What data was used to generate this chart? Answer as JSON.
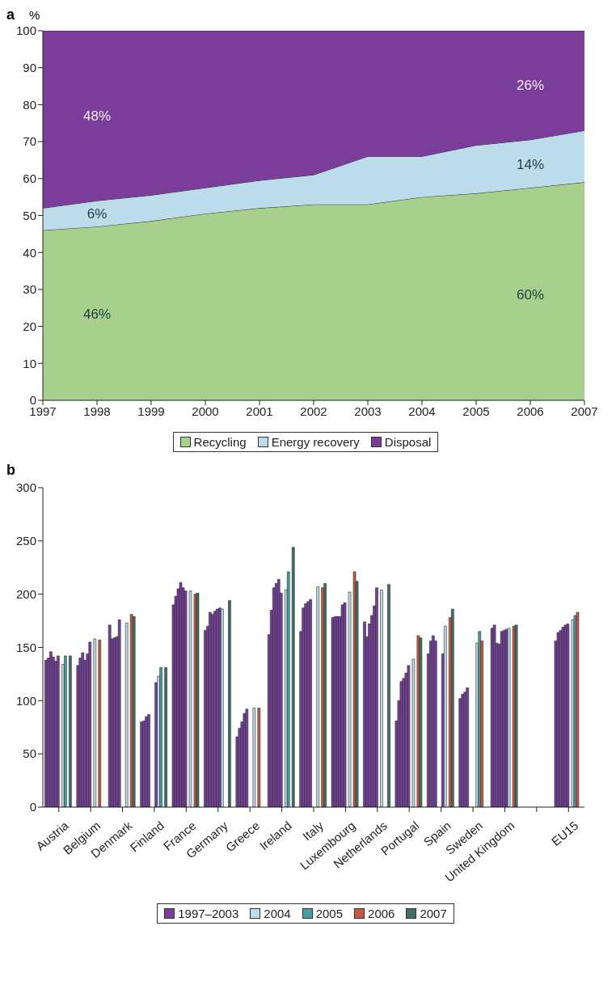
{
  "chart_data": [
    {
      "type": "area",
      "title": "a",
      "ylabel": "%",
      "stacked": true,
      "x": [
        1997,
        1998,
        1999,
        2000,
        2001,
        2002,
        2003,
        2004,
        2005,
        2006,
        2007
      ],
      "series": [
        {
          "name": "Recycling",
          "color": "#a8d08d",
          "values": [
            46,
            47,
            48.5,
            50.5,
            52,
            53,
            53,
            55,
            56,
            57.5,
            59
          ]
        },
        {
          "name": "Energy recovery",
          "color": "#bcdcec",
          "values": [
            6,
            7,
            7,
            7,
            7.5,
            8,
            13,
            11,
            13,
            13,
            14
          ]
        },
        {
          "name": "Disposal",
          "color": "#7a3d99",
          "values": [
            48,
            46,
            44.5,
            42.5,
            40.5,
            39,
            34,
            34,
            31,
            29.5,
            27
          ]
        }
      ],
      "xlim": [
        1997,
        2007
      ],
      "xticks": [
        1997,
        1998,
        1999,
        2000,
        2001,
        2002,
        2003,
        2004,
        2005,
        2006,
        2007
      ],
      "ylim": [
        0,
        100
      ],
      "yticks": [
        0,
        10,
        20,
        30,
        40,
        50,
        60,
        70,
        80,
        90,
        100
      ],
      "annotations": [
        "48%",
        "6%",
        "46%",
        "26%",
        "14%",
        "60%"
      ],
      "legend": "bottom"
    },
    {
      "type": "bar",
      "title": "b",
      "categories": [
        "Austria",
        "Belgium",
        "Denmark",
        "Finland",
        "France",
        "Germany",
        "Greece",
        "Ireland",
        "Italy",
        "Luxembourg",
        "Netherlands",
        "Portugal",
        "Spain",
        "Sweden",
        "United Kingdom",
        null,
        "EU15"
      ],
      "series": [
        {
          "name": "1997–2003",
          "color": "#74409a",
          "values": [
            138,
            133,
            171,
            80,
            190,
            166,
            66,
            162,
            165,
            178,
            174,
            81,
            144,
            102,
            168,
            null,
            156
          ]
        },
        {
          "color": "#74409a",
          "values": [
            140,
            140,
            158,
            81,
            198,
            170,
            74,
            185,
            187,
            179,
            160,
            100,
            156,
            106,
            171,
            null,
            164
          ]
        },
        {
          "color": "#74409a",
          "values": [
            146,
            145,
            159,
            85,
            205,
            183,
            80,
            206,
            191,
            179,
            172,
            118,
            161,
            108,
            154,
            null,
            166
          ]
        },
        {
          "color": "#74409a",
          "values": [
            141,
            138,
            160,
            87,
            211,
            181,
            88,
            210,
            193,
            179,
            180,
            121,
            156,
            112,
            153,
            null,
            169
          ]
        },
        {
          "color": "#74409a",
          "values": [
            137,
            144,
            176,
            null,
            206,
            184,
            92,
            214,
            195,
            190,
            189,
            126,
            null,
            null,
            165,
            null,
            171
          ]
        },
        {
          "color": "#74409a",
          "values": [
            142,
            155,
            null,
            null,
            203,
            186,
            null,
            201,
            null,
            192,
            206,
            133,
            null,
            null,
            166,
            null,
            172
          ]
        },
        {
          "color": "#74409a",
          "values": [
            null,
            null,
            null,
            117,
            null,
            187,
            null,
            null,
            null,
            null,
            null,
            null,
            144,
            null,
            167,
            null,
            null
          ]
        },
        {
          "name": "2004",
          "color": "#bcdcec",
          "values": [
            134,
            158,
            173,
            123,
            203,
            186,
            93,
            204,
            207,
            202,
            204,
            139,
            170,
            154,
            168,
            null,
            176
          ]
        },
        {
          "name": "2005",
          "color": "#4f9c9c",
          "values": [
            142,
            null,
            null,
            131,
            null,
            null,
            null,
            221,
            null,
            null,
            null,
            null,
            null,
            165,
            null,
            null,
            180
          ]
        },
        {
          "name": "2006",
          "color": "#c65a42",
          "values": [
            null,
            157,
            181,
            null,
            200,
            null,
            93,
            null,
            206,
            221,
            null,
            161,
            178,
            156,
            170,
            null,
            183
          ]
        },
        {
          "name": "2007",
          "color": "#3f6f67",
          "values": [
            142,
            null,
            179,
            131,
            201,
            194,
            null,
            244,
            210,
            212,
            209,
            159,
            186,
            null,
            171,
            null,
            null
          ]
        }
      ],
      "ylim": [
        0,
        300
      ],
      "yticks": [
        0,
        50,
        100,
        150,
        200,
        250,
        300
      ],
      "legend": "bottom"
    }
  ]
}
